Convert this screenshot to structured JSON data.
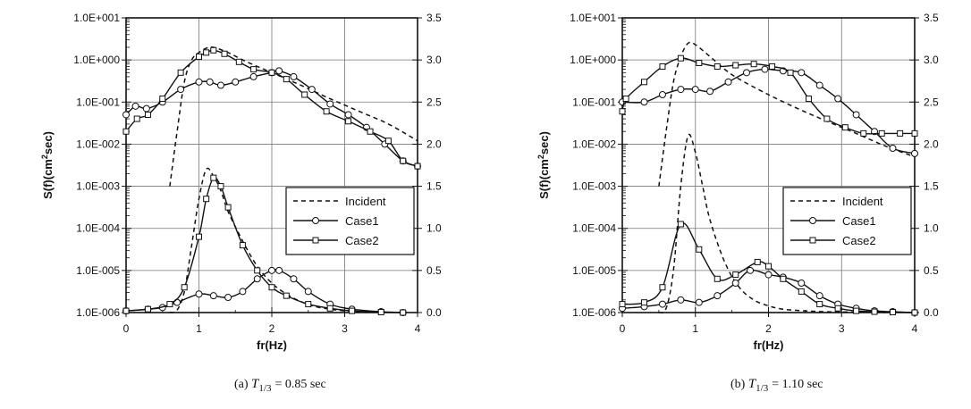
{
  "chart_data": [
    {
      "type": "line",
      "panel_label": "(a)",
      "caption_symbol": "T",
      "caption_subscript": "1/3",
      "caption_value": "= 0.85 sec",
      "xlabel": "fr(Hz)",
      "ylabel_left": "S(f)(cm²sec)",
      "ylabel_left_base": "S(f)(cm",
      "ylabel_left_sup": "2",
      "ylabel_left_tail": "sec)",
      "xlim": [
        0,
        4
      ],
      "xticks": [
        "0",
        "1",
        "2",
        "3",
        "4"
      ],
      "ylim_left": [
        1e-06,
        10
      ],
      "yscale_left": "log",
      "yticks_left": [
        "1.0E-006",
        "1.0E-005",
        "1.0E-004",
        "1.0E-003",
        "1.0E-002",
        "1.0E-001",
        "1.0E+000",
        "1.0E+001"
      ],
      "ylim_right": [
        0,
        3.5
      ],
      "yticks_right": [
        "0.0",
        "0.5",
        "1.0",
        "1.5",
        "2.0",
        "2.5",
        "3.0",
        "3.5"
      ],
      "grid": true,
      "legend_position": "lower-right",
      "legend": [
        "Incident",
        "Case1",
        "Case2"
      ],
      "series_log": [
        {
          "name": "Incident",
          "style": "dashed",
          "marker": "none",
          "x": [
            0.6,
            0.7,
            0.8,
            0.9,
            1.0,
            1.1,
            1.2,
            1.4,
            1.6,
            1.8,
            2.0,
            2.4,
            2.8,
            3.2,
            3.6,
            4.0
          ],
          "y": [
            0.001,
            0.02,
            0.3,
            1.0,
            1.5,
            1.9,
            2.0,
            1.5,
            1.0,
            0.7,
            0.5,
            0.25,
            0.12,
            0.06,
            0.03,
            0.012
          ]
        },
        {
          "name": "Case1",
          "style": "solid",
          "marker": "circle",
          "x": [
            0.0,
            0.13,
            0.28,
            0.5,
            0.75,
            1.0,
            1.15,
            1.3,
            1.5,
            1.75,
            2.0,
            2.1,
            2.3,
            2.55,
            2.8,
            3.05,
            3.3,
            3.55,
            3.8,
            4.0
          ],
          "y": [
            0.05,
            0.08,
            0.07,
            0.1,
            0.2,
            0.3,
            0.3,
            0.25,
            0.3,
            0.4,
            0.5,
            0.55,
            0.4,
            0.2,
            0.09,
            0.05,
            0.025,
            0.01,
            0.004,
            0.003
          ]
        },
        {
          "name": "Case2",
          "style": "solid",
          "marker": "square",
          "x": [
            0.0,
            0.15,
            0.3,
            0.5,
            0.75,
            1.0,
            1.1,
            1.2,
            1.35,
            1.55,
            1.75,
            2.0,
            2.2,
            2.45,
            2.75,
            3.05,
            3.35,
            3.6,
            3.8,
            4.0
          ],
          "y": [
            0.02,
            0.04,
            0.05,
            0.12,
            0.5,
            1.2,
            1.5,
            1.7,
            1.4,
            0.9,
            0.6,
            0.5,
            0.35,
            0.15,
            0.06,
            0.035,
            0.02,
            0.012,
            0.004,
            0.003
          ]
        }
      ],
      "series_linear": [
        {
          "name": "Incident",
          "style": "dashed",
          "marker": "none",
          "x": [
            0.6,
            0.7,
            0.8,
            0.9,
            1.0,
            1.1,
            1.2,
            1.3,
            1.4,
            1.6,
            1.8,
            2.0,
            2.2,
            2.4,
            2.6,
            2.8,
            3.0,
            3.2,
            3.5
          ],
          "y": [
            0.0,
            0.03,
            0.25,
            0.8,
            1.35,
            1.7,
            1.62,
            1.45,
            1.2,
            0.85,
            0.55,
            0.35,
            0.22,
            0.13,
            0.07,
            0.04,
            0.02,
            0.01,
            0.0
          ]
        },
        {
          "name": "Case1",
          "style": "solid",
          "marker": "circle",
          "x": [
            0.0,
            0.3,
            0.5,
            0.7,
            1.0,
            1.2,
            1.4,
            1.6,
            1.8,
            2.0,
            2.1,
            2.3,
            2.5,
            2.8,
            3.1,
            3.5,
            3.8
          ],
          "y": [
            0.02,
            0.04,
            0.06,
            0.12,
            0.22,
            0.2,
            0.18,
            0.25,
            0.4,
            0.5,
            0.5,
            0.4,
            0.25,
            0.1,
            0.04,
            0.01,
            0.0
          ]
        },
        {
          "name": "Case2",
          "style": "solid",
          "marker": "square",
          "x": [
            0.0,
            0.3,
            0.6,
            0.8,
            1.0,
            1.1,
            1.2,
            1.3,
            1.4,
            1.6,
            1.8,
            2.0,
            2.2,
            2.5,
            2.8,
            3.1,
            3.5,
            3.8
          ],
          "y": [
            0.02,
            0.04,
            0.1,
            0.3,
            0.9,
            1.35,
            1.6,
            1.5,
            1.25,
            0.8,
            0.5,
            0.3,
            0.2,
            0.1,
            0.05,
            0.02,
            0.005,
            0.0
          ]
        }
      ]
    },
    {
      "type": "line",
      "panel_label": "(b)",
      "caption_symbol": "T",
      "caption_subscript": "1/3",
      "caption_value": "= 1.10 sec",
      "xlabel": "fr(Hz)",
      "ylabel_left": "S(f)(cm²sec)",
      "ylabel_left_base": "S(f)(cm",
      "ylabel_left_sup": "2",
      "ylabel_left_tail": "sec)",
      "xlim": [
        0,
        4
      ],
      "xticks": [
        "0",
        "1",
        "2",
        "3",
        "4"
      ],
      "ylim_left": [
        1e-06,
        10
      ],
      "yscale_left": "log",
      "yticks_left": [
        "1.0E-006",
        "1.0E-005",
        "1.0E-004",
        "1.0E-003",
        "1.0E-002",
        "1.0E-001",
        "1.0E+000",
        "1.0E+001"
      ],
      "ylim_right": [
        0,
        3.5
      ],
      "yticks_right": [
        "0.0",
        "0.5",
        "1.0",
        "1.5",
        "2.0",
        "2.5",
        "3.0",
        "3.5"
      ],
      "grid": true,
      "legend_position": "lower-right",
      "legend": [
        "Incident",
        "Case1",
        "Case2"
      ],
      "series_log": [
        {
          "name": "Incident",
          "style": "dashed",
          "marker": "none",
          "x": [
            0.5,
            0.6,
            0.7,
            0.8,
            0.9,
            1.0,
            1.2,
            1.4,
            1.6,
            2.0,
            2.4,
            2.8,
            3.2,
            3.6,
            4.0
          ],
          "y": [
            0.001,
            0.02,
            0.3,
            1.2,
            2.5,
            2.3,
            1.2,
            0.6,
            0.35,
            0.15,
            0.07,
            0.035,
            0.018,
            0.009,
            0.005
          ]
        },
        {
          "name": "Case1",
          "style": "solid",
          "marker": "circle",
          "x": [
            0.0,
            0.3,
            0.55,
            0.8,
            1.0,
            1.2,
            1.45,
            1.7,
            1.95,
            2.2,
            2.45,
            2.7,
            2.95,
            3.2,
            3.45,
            3.7,
            4.0
          ],
          "y": [
            0.1,
            0.1,
            0.15,
            0.2,
            0.2,
            0.18,
            0.3,
            0.5,
            0.6,
            0.55,
            0.5,
            0.25,
            0.12,
            0.05,
            0.02,
            0.008,
            0.006
          ]
        },
        {
          "name": "Case2",
          "style": "solid",
          "marker": "square",
          "x": [
            0.0,
            0.05,
            0.3,
            0.55,
            0.8,
            1.05,
            1.3,
            1.55,
            1.8,
            2.05,
            2.3,
            2.55,
            2.8,
            3.05,
            3.3,
            3.55,
            3.8,
            4.0
          ],
          "y": [
            0.06,
            0.12,
            0.3,
            0.7,
            1.1,
            0.85,
            0.7,
            0.75,
            0.8,
            0.7,
            0.5,
            0.12,
            0.04,
            0.025,
            0.018,
            0.018,
            0.018,
            0.018
          ]
        }
      ],
      "series_linear": [
        {
          "name": "Incident",
          "style": "dashed",
          "marker": "none",
          "x": [
            0.5,
            0.6,
            0.7,
            0.8,
            0.9,
            1.0,
            1.1,
            1.2,
            1.4,
            1.6,
            1.8,
            2.0,
            2.2,
            2.5,
            2.8,
            3.2,
            3.6
          ],
          "y": [
            0.0,
            0.05,
            0.5,
            1.5,
            2.1,
            1.9,
            1.5,
            1.1,
            0.6,
            0.3,
            0.15,
            0.08,
            0.04,
            0.02,
            0.01,
            0.005,
            0.0
          ]
        },
        {
          "name": "Case1",
          "style": "solid",
          "marker": "circle",
          "x": [
            0.0,
            0.3,
            0.55,
            0.8,
            1.05,
            1.3,
            1.55,
            1.75,
            2.0,
            2.2,
            2.45,
            2.7,
            2.95,
            3.2,
            3.45,
            3.7,
            4.0
          ],
          "y": [
            0.05,
            0.07,
            0.1,
            0.15,
            0.12,
            0.2,
            0.35,
            0.5,
            0.45,
            0.42,
            0.35,
            0.2,
            0.1,
            0.05,
            0.02,
            0.01,
            0.0
          ]
        },
        {
          "name": "Case2",
          "style": "solid",
          "marker": "square",
          "x": [
            0.0,
            0.3,
            0.55,
            0.8,
            1.05,
            1.3,
            1.55,
            1.85,
            2.0,
            2.2,
            2.45,
            2.7,
            2.95,
            3.2,
            3.45,
            3.7,
            4.0
          ],
          "y": [
            0.1,
            0.12,
            0.3,
            1.05,
            0.75,
            0.4,
            0.45,
            0.6,
            0.55,
            0.4,
            0.25,
            0.1,
            0.05,
            0.02,
            0.01,
            0.005,
            0.0
          ]
        }
      ]
    }
  ]
}
